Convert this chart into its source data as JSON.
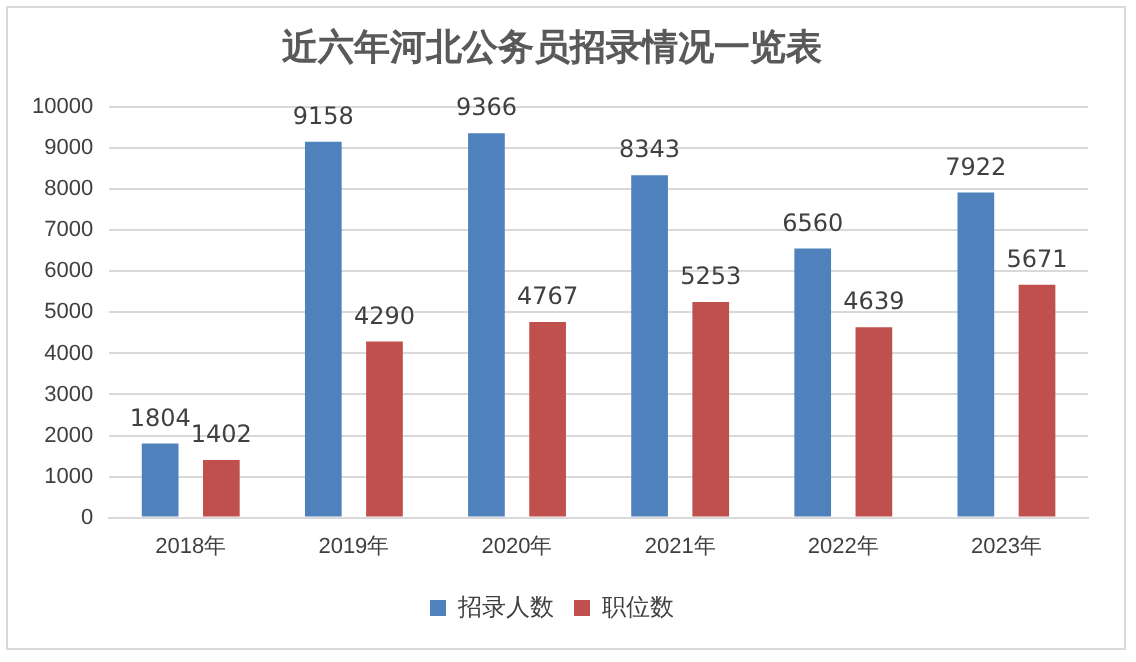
{
  "chart_data": {
    "type": "bar",
    "title": "近六年河北公务员招录情况一览表",
    "categories": [
      "2018年",
      "2019年",
      "2020年",
      "2021年",
      "2022年",
      "2023年"
    ],
    "series": [
      {
        "name": "招录人数",
        "color": "#4f81bd",
        "values": [
          1804,
          9158,
          9366,
          8343,
          6560,
          7922
        ]
      },
      {
        "name": "职位数",
        "color": "#c0504d",
        "values": [
          1402,
          4290,
          4767,
          5253,
          4639,
          5671
        ]
      }
    ],
    "ylim": [
      0,
      10000
    ],
    "yticks": [
      0,
      1000,
      2000,
      3000,
      4000,
      5000,
      6000,
      7000,
      8000,
      9000,
      10000
    ],
    "grid": "y",
    "legend": "bottom",
    "data_labels": true
  }
}
